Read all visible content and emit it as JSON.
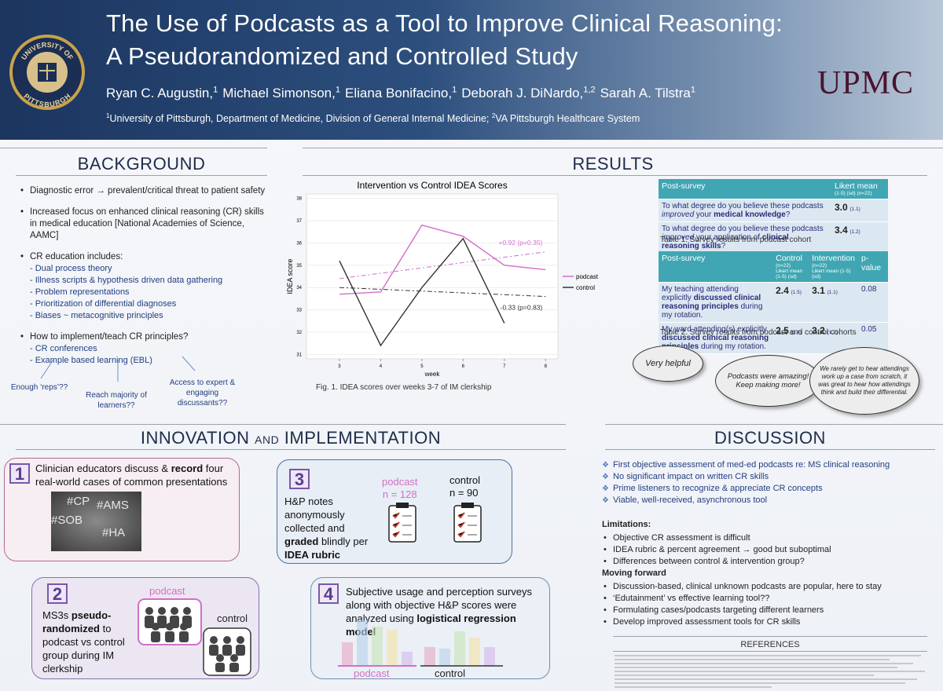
{
  "header": {
    "logo": {
      "top": "UNIVERSITY OF",
      "bottom": "PITTSBURGH"
    },
    "title": [
      "The Use of Podcasts as a Tool to Improve Clinical Reasoning:",
      "A Pseudorandomized and Controlled Study"
    ],
    "authors": [
      {
        "name": "Ryan C. Augustin,",
        "aff": "1"
      },
      {
        "name": "Michael Simonson,",
        "aff": "1"
      },
      {
        "name": "Eliana Bonifacino,",
        "aff": "1"
      },
      {
        "name": "Deborah J. DiNardo,",
        "aff": "1,2"
      },
      {
        "name": "Sarah A. Tilstra",
        "aff": "1"
      }
    ],
    "affiliations": [
      {
        "num": "1",
        "text": "University of Pittsburgh, Department of Medicine, Division of General Internal Medicine; "
      },
      {
        "num": "2",
        "text": "VA Pittsburgh Healthcare System"
      }
    ],
    "brand": "UPMC"
  },
  "background": {
    "title": "BACKGROUND",
    "items": [
      "Diagnostic error → prevalent/critical threat to patient safety",
      "Increased focus on enhanced clinical reasoning (CR) skills in medical education [National Academies of Science, AAMC]",
      {
        "text": "CR education includes:",
        "sub": [
          "- Dual process theory",
          "- Illness scripts & hypothesis driven data gathering",
          "- Problem representations",
          "- Prioritization of differential diagnoses",
          "- Biases ~ metacognitive principles"
        ]
      },
      {
        "text": "How to implement/teach CR principles?",
        "sub": [
          "- CR conferences",
          "- Example based learning (EBL)"
        ]
      }
    ],
    "questions": [
      "Enough ‘reps’??",
      "Reach majority of learners??",
      "Access to expert & engaging discussants??"
    ]
  },
  "results": {
    "title": "RESULTS",
    "chart_data": {
      "type": "line",
      "title": "Intervention vs Control IDEA Scores",
      "x_label": "week",
      "y_label": "IDEA score",
      "x": [
        3,
        4,
        5,
        6,
        7,
        8
      ],
      "xlim": [
        2.2,
        8.3
      ],
      "xticks": [
        3,
        4,
        5,
        6,
        7,
        8
      ],
      "ylim": [
        30.8,
        38.2
      ],
      "yticks": [
        31,
        32,
        33,
        34,
        35,
        36,
        37,
        38
      ],
      "legend": "right",
      "series": [
        {
          "name": "podcast",
          "color": "#d26fc8",
          "values": [
            33.7,
            33.8,
            36.8,
            36.3,
            35.0,
            34.8
          ],
          "trend": {
            "x": [
              3,
              8
            ],
            "values": [
              34.4,
              35.6
            ],
            "label": "+0.92 (p=0.35)"
          }
        },
        {
          "name": "control",
          "color": "#333333",
          "values": [
            35.2,
            31.4,
            34.0,
            36.2,
            32.4,
            null
          ],
          "trend": {
            "x": [
              3,
              8
            ],
            "values": [
              34.0,
              33.6
            ],
            "label": "-0.33 (p=0.83)"
          }
        }
      ],
      "caption": "Fig. 1. IDEA scores over weeks 3-7 of IM clerkship"
    },
    "table1": {
      "headers": [
        "Post-survey",
        "Likert mean"
      ],
      "header_note": "(1-5) (sd) (n=22)",
      "rows": [
        {
          "question": [
            "To what degree do you believe these podcasts ",
            {
              "i": "improved"
            },
            " your ",
            {
              "b": "medical knowledge"
            },
            "?"
          ],
          "mean": "3.0",
          "sd": "(1.1)"
        },
        {
          "question": [
            "To what degree do you believe these podcasts ",
            {
              "i": "improved"
            },
            " your application of ",
            {
              "b": "clinical reasoning skills"
            },
            "?"
          ],
          "mean": "3.4",
          "sd": "(1.2)"
        }
      ],
      "caption": "Table 1. Survey results from podcast cohort"
    },
    "table2": {
      "headers": [
        "Post-survey",
        "Control",
        "Intervention",
        "p-value"
      ],
      "header_n": [
        "(n=22)",
        "(n=22)"
      ],
      "header_note": [
        "Likert mean (1-5) (sd)",
        "Likert mean (1-5) (sd)"
      ],
      "rows": [
        {
          "question": [
            "My teaching attending explicitly ",
            {
              "b": "discussed clinical reasoning principles"
            },
            " during my rotation."
          ],
          "control": "2.4",
          "control_sd": "(1.5)",
          "intervention": "3.1",
          "intervention_sd": "(1.1)",
          "p": "0.08"
        },
        {
          "question": [
            "My ward attending(s) explicitly ",
            {
              "b": "discussed clinical reasoning principles"
            },
            " during my rotation."
          ],
          "control": "2.5",
          "control_sd": "(1.4)",
          "intervention": "3.2",
          "intervention_sd": "(1.2)",
          "p": "0.05"
        }
      ],
      "caption": "Table 2. Survey results from podcast and control cohorts"
    },
    "quotes": [
      "Very helpful",
      "Podcasts were amazing! Keep making more!",
      "We rarely get to hear attendings work up a case from scratch, it was great to hear how attendings think and build their differential."
    ]
  },
  "innovation": {
    "title": [
      "INNOVATION ",
      "AND",
      " IMPLEMENTATION"
    ],
    "step1": {
      "num": "1",
      "text": [
        "Clinician educators discuss & ",
        {
          "b": "record"
        },
        " four real-world cases of common presentations"
      ],
      "tags": [
        "#CP",
        "#AMS",
        "#SOB",
        "#HA"
      ]
    },
    "step2": {
      "num": "2",
      "text": [
        "MS3s ",
        {
          "b": "pseudo-randomized"
        },
        " to podcast vs control group during IM clerkship"
      ],
      "podcast": "podcast",
      "control": "control"
    },
    "step3": {
      "num": "3",
      "text": [
        "H&P notes anonymously collected and ",
        {
          "b": "graded"
        },
        " blindly per ",
        {
          "b": "IDEA rubric"
        }
      ],
      "podcast": "podcast",
      "podcast_n": "n = 128",
      "control": "control",
      "control_n": "n = 90"
    },
    "step4": {
      "num": "4",
      "text": [
        "Subjective usage and perception surveys along with objective H&P scores were analyzed using ",
        {
          "b": "logistical regression model"
        }
      ],
      "podcast": "podcast",
      "control": "control"
    }
  },
  "discussion": {
    "title": "DISCUSSION",
    "items": [
      "First objective assessment of med-ed podcasts re: MS clinical reasoning",
      "No significant impact on written CR skills",
      "Prime listeners to recognize & appreciate CR concepts",
      "Viable, well-received, asynchronous tool"
    ],
    "limitations_title": "Limitations:",
    "limitations": [
      "Objective CR assessment is difficult",
      "IDEA rubric & percent agreement → good but suboptimal",
      "Differences between control & intervention group?"
    ],
    "forward_title": "Moving forward",
    "forward": [
      "Discussion-based, clinical unknown podcasts are popular, here to stay",
      "‘Edutainment’ vs effective learning tool??",
      "Formulating cases/podcasts targeting different learners",
      "Develop improved assessment tools for CR skills"
    ],
    "references_title": "REFERENCES"
  }
}
